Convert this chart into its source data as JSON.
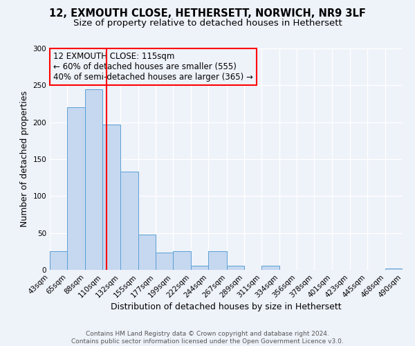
{
  "title": "12, EXMOUTH CLOSE, HETHERSETT, NORWICH, NR9 3LF",
  "subtitle": "Size of property relative to detached houses in Hethersett",
  "xlabel": "Distribution of detached houses by size in Hethersett",
  "ylabel": "Number of detached properties",
  "bin_edges": [
    43,
    65,
    88,
    110,
    132,
    155,
    177,
    199,
    222,
    244,
    267,
    289,
    311,
    334,
    356,
    378,
    401,
    423,
    445,
    468,
    490
  ],
  "bar_heights": [
    25,
    220,
    245,
    197,
    133,
    48,
    23,
    25,
    6,
    25,
    6,
    0,
    6,
    0,
    0,
    0,
    0,
    0,
    0,
    2
  ],
  "bar_color": "#c5d8f0",
  "bar_edge_color": "#5a9fd4",
  "vline_x": 115,
  "vline_color": "red",
  "ylim": [
    0,
    300
  ],
  "yticks": [
    0,
    50,
    100,
    150,
    200,
    250,
    300
  ],
  "annotation_title": "12 EXMOUTH CLOSE: 115sqm",
  "annotation_line1": "← 60% of detached houses are smaller (555)",
  "annotation_line2": "40% of semi-detached houses are larger (365) →",
  "annotation_box_color": "red",
  "footer_line1": "Contains HM Land Registry data © Crown copyright and database right 2024.",
  "footer_line2": "Contains public sector information licensed under the Open Government Licence v3.0.",
  "background_color": "#eef2f9",
  "title_fontsize": 10.5,
  "subtitle_fontsize": 9.5,
  "axis_label_fontsize": 9,
  "tick_label_fontsize": 7.5,
  "annotation_fontsize": 8.5,
  "footer_fontsize": 6.5
}
